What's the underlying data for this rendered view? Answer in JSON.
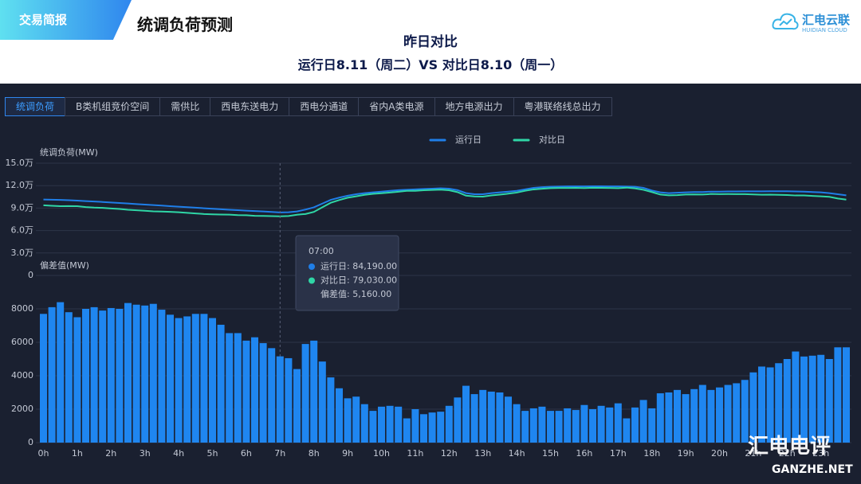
{
  "header": {
    "tag": "交易简报",
    "title": "统调负荷预测",
    "subtitle": "昨日对比",
    "compare": "运行日8.11（周二）VS 对比日8.10（周一）"
  },
  "logo": {
    "name": "汇电云联",
    "sub": "HUIDIAN CLOUD"
  },
  "tabs": {
    "items": [
      "统调负荷",
      "B类机组竞价空间",
      "需供比",
      "西电东送电力",
      "西电分通道",
      "省内A类电源",
      "地方电源出力",
      "粤港联络线总出力"
    ],
    "active": 0
  },
  "watermark": {
    "name": "汇电电评",
    "site": "GANZHE.NET"
  },
  "chart_data": [
    {
      "type": "line",
      "ylabel": "统调负荷(MW)",
      "ylim": [
        0,
        150000
      ],
      "yticks": [
        0,
        {
          "value": 30000,
          "label": "3.0万"
        },
        {
          "value": 60000,
          "label": "6.0万"
        },
        {
          "value": 90000,
          "label": "9.0万"
        },
        {
          "value": 120000,
          "label": "12.0万"
        },
        {
          "value": 150000,
          "label": "15.0万"
        }
      ],
      "grid": true,
      "legend": "top",
      "series": [
        {
          "name": "运行日",
          "color": "#1f7ee8",
          "values": [
            101500,
            101200,
            100900,
            100500,
            100000,
            99400,
            98800,
            98200,
            97500,
            96800,
            96100,
            95400,
            94700,
            94000,
            93300,
            92600,
            91900,
            91200,
            90500,
            89800,
            89100,
            88400,
            87800,
            87200,
            86600,
            86000,
            85500,
            84900,
            84190,
            84500,
            85500,
            88000,
            91000,
            96000,
            101000,
            104000,
            106500,
            108500,
            110000,
            111000,
            112000,
            113000,
            114000,
            114500,
            115000,
            115500,
            116000,
            116500,
            116000,
            114000,
            110000,
            108500,
            108500,
            110000,
            111000,
            112000,
            113000,
            115000,
            117000,
            118000,
            118500,
            118800,
            119000,
            119000,
            119000,
            119200,
            119200,
            119000,
            119000,
            118800,
            118500,
            117000,
            113500,
            111000,
            110000,
            110500,
            111000,
            111500,
            111500,
            112000,
            112000,
            112200,
            112200,
            112400,
            112400,
            112400,
            112500,
            112500,
            112500,
            112300,
            112000,
            111500,
            111000,
            110000,
            108500,
            107000
          ]
        },
        {
          "name": "对比日",
          "color": "#2fd6a6",
          "values": [
            93800,
            93100,
            92500,
            92700,
            92500,
            91400,
            90700,
            90300,
            89450,
            88800,
            87750,
            87150,
            86500,
            85700,
            85350,
            84950,
            84450,
            83650,
            82800,
            82100,
            81650,
            81350,
            81250,
            80650,
            80500,
            79700,
            79550,
            79250,
            79030,
            79450,
            81100,
            82100,
            84900,
            91150,
            97100,
            100750,
            103850,
            105750,
            107700,
            109100,
            109850,
            110800,
            111850,
            113050,
            113000,
            113800,
            114200,
            114650,
            113800,
            111300,
            106600,
            105600,
            105350,
            106950,
            108000,
            109250,
            110700,
            113100,
            114950,
            115850,
            116600,
            116900,
            116950,
            117050,
            116750,
            117200,
            117000,
            116900,
            116650,
            117350,
            116400,
            114450,
            111450,
            108050,
            107000,
            107350,
            108100,
            108300,
            108050,
            108850,
            108700,
            108750,
            108650,
            108650,
            108200,
            107850,
            108000,
            107750,
            107500,
            106850,
            106850,
            106300,
            105750,
            105000,
            102800,
            101300
          ]
        }
      ],
      "tooltip": {
        "index": 28,
        "title": "07:00",
        "rows": [
          "运行日: 84,190.00",
          "对比日: 79,030.00",
          "偏差值: 5,160.00"
        ]
      }
    },
    {
      "type": "bar",
      "ylabel": "偏差值(MW)",
      "ylim": [
        0,
        10000
      ],
      "yticks": [
        0,
        2000,
        4000,
        6000,
        8000
      ],
      "grid": true,
      "color": "#1f86f0",
      "categories": [
        "0h",
        null,
        null,
        null,
        "1h",
        null,
        null,
        null,
        "2h",
        null,
        null,
        null,
        "3h",
        null,
        null,
        null,
        "4h",
        null,
        null,
        null,
        "5h",
        null,
        null,
        null,
        "6h",
        null,
        null,
        null,
        "7h",
        null,
        null,
        null,
        "8h",
        null,
        null,
        null,
        "9h",
        null,
        null,
        null,
        "10h",
        null,
        null,
        null,
        "11h",
        null,
        null,
        null,
        "12h",
        null,
        null,
        null,
        "13h",
        null,
        null,
        null,
        "14h",
        null,
        null,
        null,
        "15h",
        null,
        null,
        null,
        "16h",
        null,
        null,
        null,
        "17h",
        null,
        null,
        null,
        "18h",
        null,
        null,
        null,
        "19h",
        null,
        null,
        null,
        "20h",
        null,
        null,
        null,
        "21h",
        null,
        null,
        null,
        "22h",
        null,
        null,
        null,
        "23h",
        null,
        null,
        null
      ],
      "values": [
        7700,
        8100,
        8400,
        7800,
        7500,
        8000,
        8100,
        7900,
        8050,
        8000,
        8350,
        8250,
        8200,
        8300,
        7950,
        7650,
        7450,
        7550,
        7700,
        7700,
        7450,
        7050,
        6550,
        6550,
        6100,
        6300,
        5950,
        5650,
        5160,
        5050,
        4400,
        5900,
        6100,
        4850,
        3900,
        3250,
        2650,
        2750,
        2300,
        1900,
        2150,
        2200,
        2150,
        1450,
        2000,
        1700,
        1800,
        1850,
        2200,
        2700,
        3400,
        2900,
        3150,
        3050,
        3000,
        2750,
        2300,
        1900,
        2050,
        2150,
        1900,
        1900,
        2050,
        1950,
        2250,
        2000,
        2200,
        2100,
        2350,
        1450,
        2100,
        2550,
        2050,
        2950,
        3000,
        3150,
        2900,
        3200,
        3450,
        3150,
        3300,
        3450,
        3550,
        3750,
        4200,
        4550,
        4500,
        4750,
        5000,
        5450,
        5150,
        5200,
        5250,
        5000,
        5700,
        5700
      ]
    }
  ]
}
